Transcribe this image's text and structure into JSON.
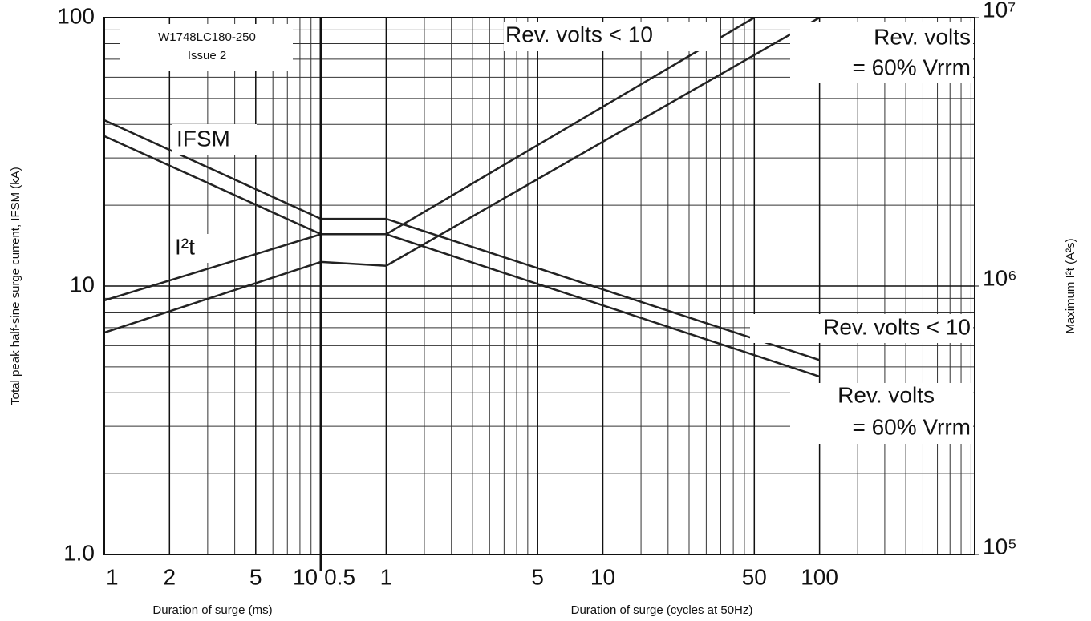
{
  "chart_data": {
    "type": "line",
    "log_x": true,
    "log_y": true,
    "grid": true,
    "minor_grid": true,
    "xlim": [
      1,
      10400
    ],
    "xticks": [
      1,
      2,
      5,
      10,
      {
        "value": 10,
        "label": "0.5"
      },
      {
        "value": 20,
        "label": "1"
      },
      {
        "value": 100,
        "label": "5"
      },
      {
        "value": 200,
        "label": "10"
      },
      {
        "value": 1000,
        "label": "50"
      },
      {
        "value": 2000,
        "label": "100"
      }
    ],
    "xlabels": [
      "Duration of surge (ms)",
      "Duration of surge (cycles at 50Hz)"
    ],
    "ylim": [
      1,
      100
    ],
    "yticks": [
      {
        "value": 1,
        "label": "1.0"
      },
      10,
      100
    ],
    "ylabel": "Total peak half-sine surge current, IFSM (kA)",
    "y2lim": [
      100000,
      10000000
    ],
    "y2ticks": [
      {
        "value": 100000,
        "label": "10⁵"
      },
      {
        "value": 1000000,
        "label": "10⁶"
      },
      {
        "value": 10000000,
        "label": "10⁷"
      }
    ],
    "y2label": "Maximum I²t (A²s)",
    "series": [
      {
        "color": "#222",
        "x": [
          1,
          10,
          20,
          2000
        ],
        "values": [
          41.5,
          17.8,
          17.8,
          5.3
        ]
      },
      {
        "color": "#222",
        "x": [
          1,
          10,
          20,
          2000
        ],
        "values": [
          36.2,
          15.6,
          15.6,
          4.6
        ]
      },
      {
        "color": "#222",
        "axis": "y2",
        "x": [
          1,
          10,
          20,
          1000
        ],
        "values": [
          884000,
          1560000,
          1560000,
          10000000
        ]
      },
      {
        "color": "#222",
        "axis": "y2",
        "x": [
          1,
          10,
          20,
          2000
        ],
        "values": [
          671000,
          1230000,
          1190000,
          10000000
        ]
      }
    ],
    "annotations": [
      "W1748LC180-250",
      "Issue 2",
      "IFSM",
      "I²t",
      "Rev. volts < 10",
      "Rev. volts",
      "= 60% Vrrm",
      "Rev. volts < 10",
      "Rev. volts",
      "= 60% Vrrm"
    ]
  }
}
